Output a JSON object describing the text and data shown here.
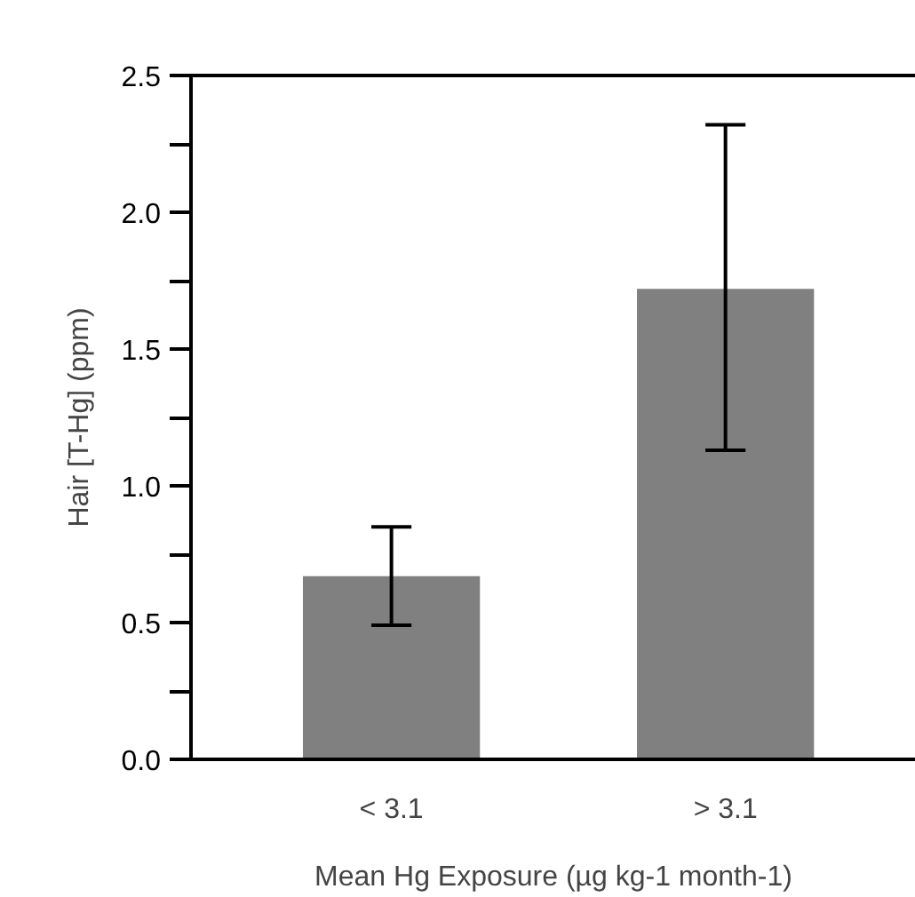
{
  "chart_data": {
    "type": "bar",
    "xlabel": "Mean Hg Exposure (µg kg-1 month-1)",
    "ylabel": "Hair [T-Hg] (ppm)",
    "categories": [
      "< 3.1",
      "> 3.1"
    ],
    "values": [
      0.67,
      1.72
    ],
    "errors": [
      [
        0.49,
        0.85
      ],
      [
        1.13,
        2.32
      ]
    ],
    "color": "#808080",
    "ylim": [
      0,
      2.5
    ],
    "yticks": [
      {
        "value": 0,
        "label": "0.0"
      },
      {
        "value": 0.25,
        "label": null
      },
      {
        "value": 0.5,
        "label": "0.5"
      },
      {
        "value": 0.75,
        "label": null
      },
      {
        "value": 1.0,
        "label": "1.0"
      },
      {
        "value": 1.25,
        "label": null
      },
      {
        "value": 1.5,
        "label": "1.5"
      },
      {
        "value": 1.75,
        "label": null
      },
      {
        "value": 2.0,
        "label": "2.0"
      },
      {
        "value": 2.25,
        "label": null
      },
      {
        "value": 2.5,
        "label": "2.5"
      }
    ],
    "grid": false
  }
}
